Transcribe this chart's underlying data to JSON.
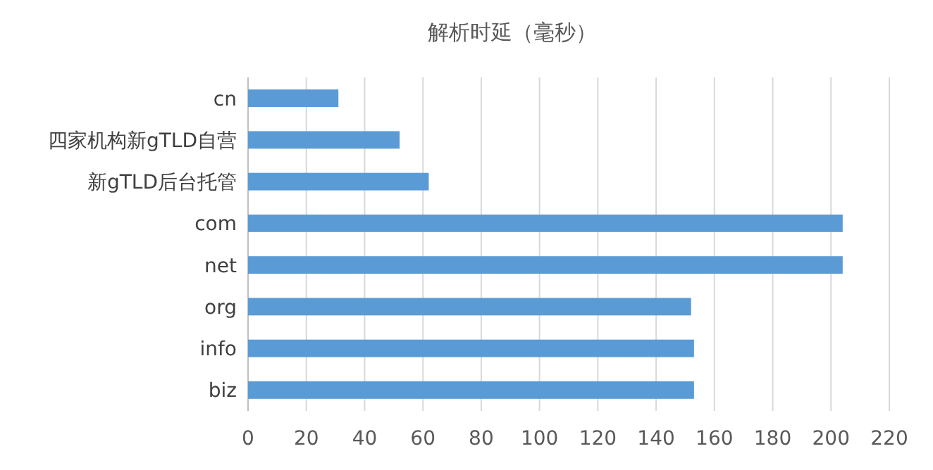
{
  "chart_data": {
    "type": "bar",
    "orientation": "horizontal",
    "title": "解析时延（毫秒）",
    "categories": [
      "cn",
      "四家机构新gTLD自营",
      "新gTLD后台托管",
      "com",
      "net",
      "org",
      "info",
      "biz"
    ],
    "values": [
      31,
      52,
      62,
      204,
      204,
      152,
      153,
      153
    ],
    "color": "#5b9bd5",
    "xlim": [
      0,
      220
    ],
    "xticks": [
      0,
      20,
      40,
      60,
      80,
      100,
      120,
      140,
      160,
      180,
      200,
      220
    ],
    "grid": "x"
  }
}
